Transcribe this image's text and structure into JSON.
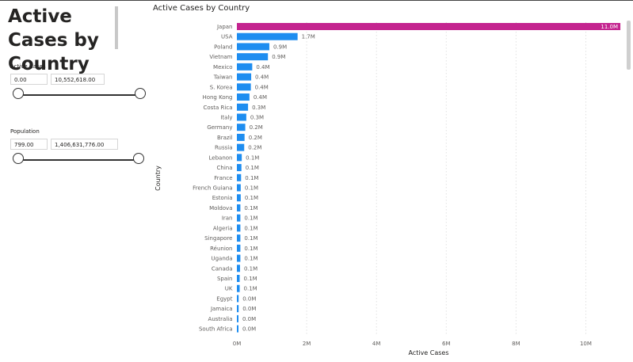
{
  "page": {
    "title": "Active Cases by Country"
  },
  "slicers": [
    {
      "label": "Active Cases",
      "min": "0.00",
      "max": "10,552,618.00"
    },
    {
      "label": "Population",
      "min": "799.00",
      "max": "1,406,631,776.00"
    }
  ],
  "colors": {
    "highlight": "#C4248F",
    "bar": "#1E8DF0",
    "grid": "#E1E1E1"
  },
  "chart_data": {
    "type": "bar",
    "orientation": "horizontal",
    "title": "Active Cases by Country",
    "xlabel": "Active Cases",
    "ylabel": "Country",
    "xlim": [
      0,
      11000000
    ],
    "xticks": [
      0,
      2000000,
      4000000,
      6000000,
      8000000,
      10000000
    ],
    "xtick_labels": [
      "0M",
      "2M",
      "4M",
      "6M",
      "8M",
      "10M"
    ],
    "grid": true,
    "categories": [
      "Japan",
      "USA",
      "Poland",
      "Vietnam",
      "Mexico",
      "Taiwan",
      "S. Korea",
      "Hong Kong",
      "Costa Rica",
      "Italy",
      "Germany",
      "Brazil",
      "Russia",
      "Lebanon",
      "China",
      "France",
      "French Guiana",
      "Estonia",
      "Moldova",
      "Iran",
      "Algeria",
      "Singapore",
      "Réunion",
      "Uganda",
      "Canada",
      "Spain",
      "UK",
      "Egypt",
      "Jamaica",
      "Australia",
      "South Africa"
    ],
    "values": [
      10990000,
      1740000,
      930000,
      890000,
      440000,
      410000,
      400000,
      360000,
      320000,
      270000,
      240000,
      220000,
      210000,
      140000,
      130000,
      120000,
      110000,
      110000,
      100000,
      100000,
      100000,
      100000,
      100000,
      100000,
      90000,
      80000,
      80000,
      50000,
      50000,
      40000,
      40000
    ],
    "data_labels": [
      "11.0M",
      "1.7M",
      "0.9M",
      "0.9M",
      "0.4M",
      "0.4M",
      "0.4M",
      "0.4M",
      "0.3M",
      "0.3M",
      "0.2M",
      "0.2M",
      "0.2M",
      "0.1M",
      "0.1M",
      "0.1M",
      "0.1M",
      "0.1M",
      "0.1M",
      "0.1M",
      "0.1M",
      "0.1M",
      "0.1M",
      "0.1M",
      "0.1M",
      "0.1M",
      "0.1M",
      "0.0M",
      "0.0M",
      "0.0M",
      "0.0M"
    ]
  }
}
